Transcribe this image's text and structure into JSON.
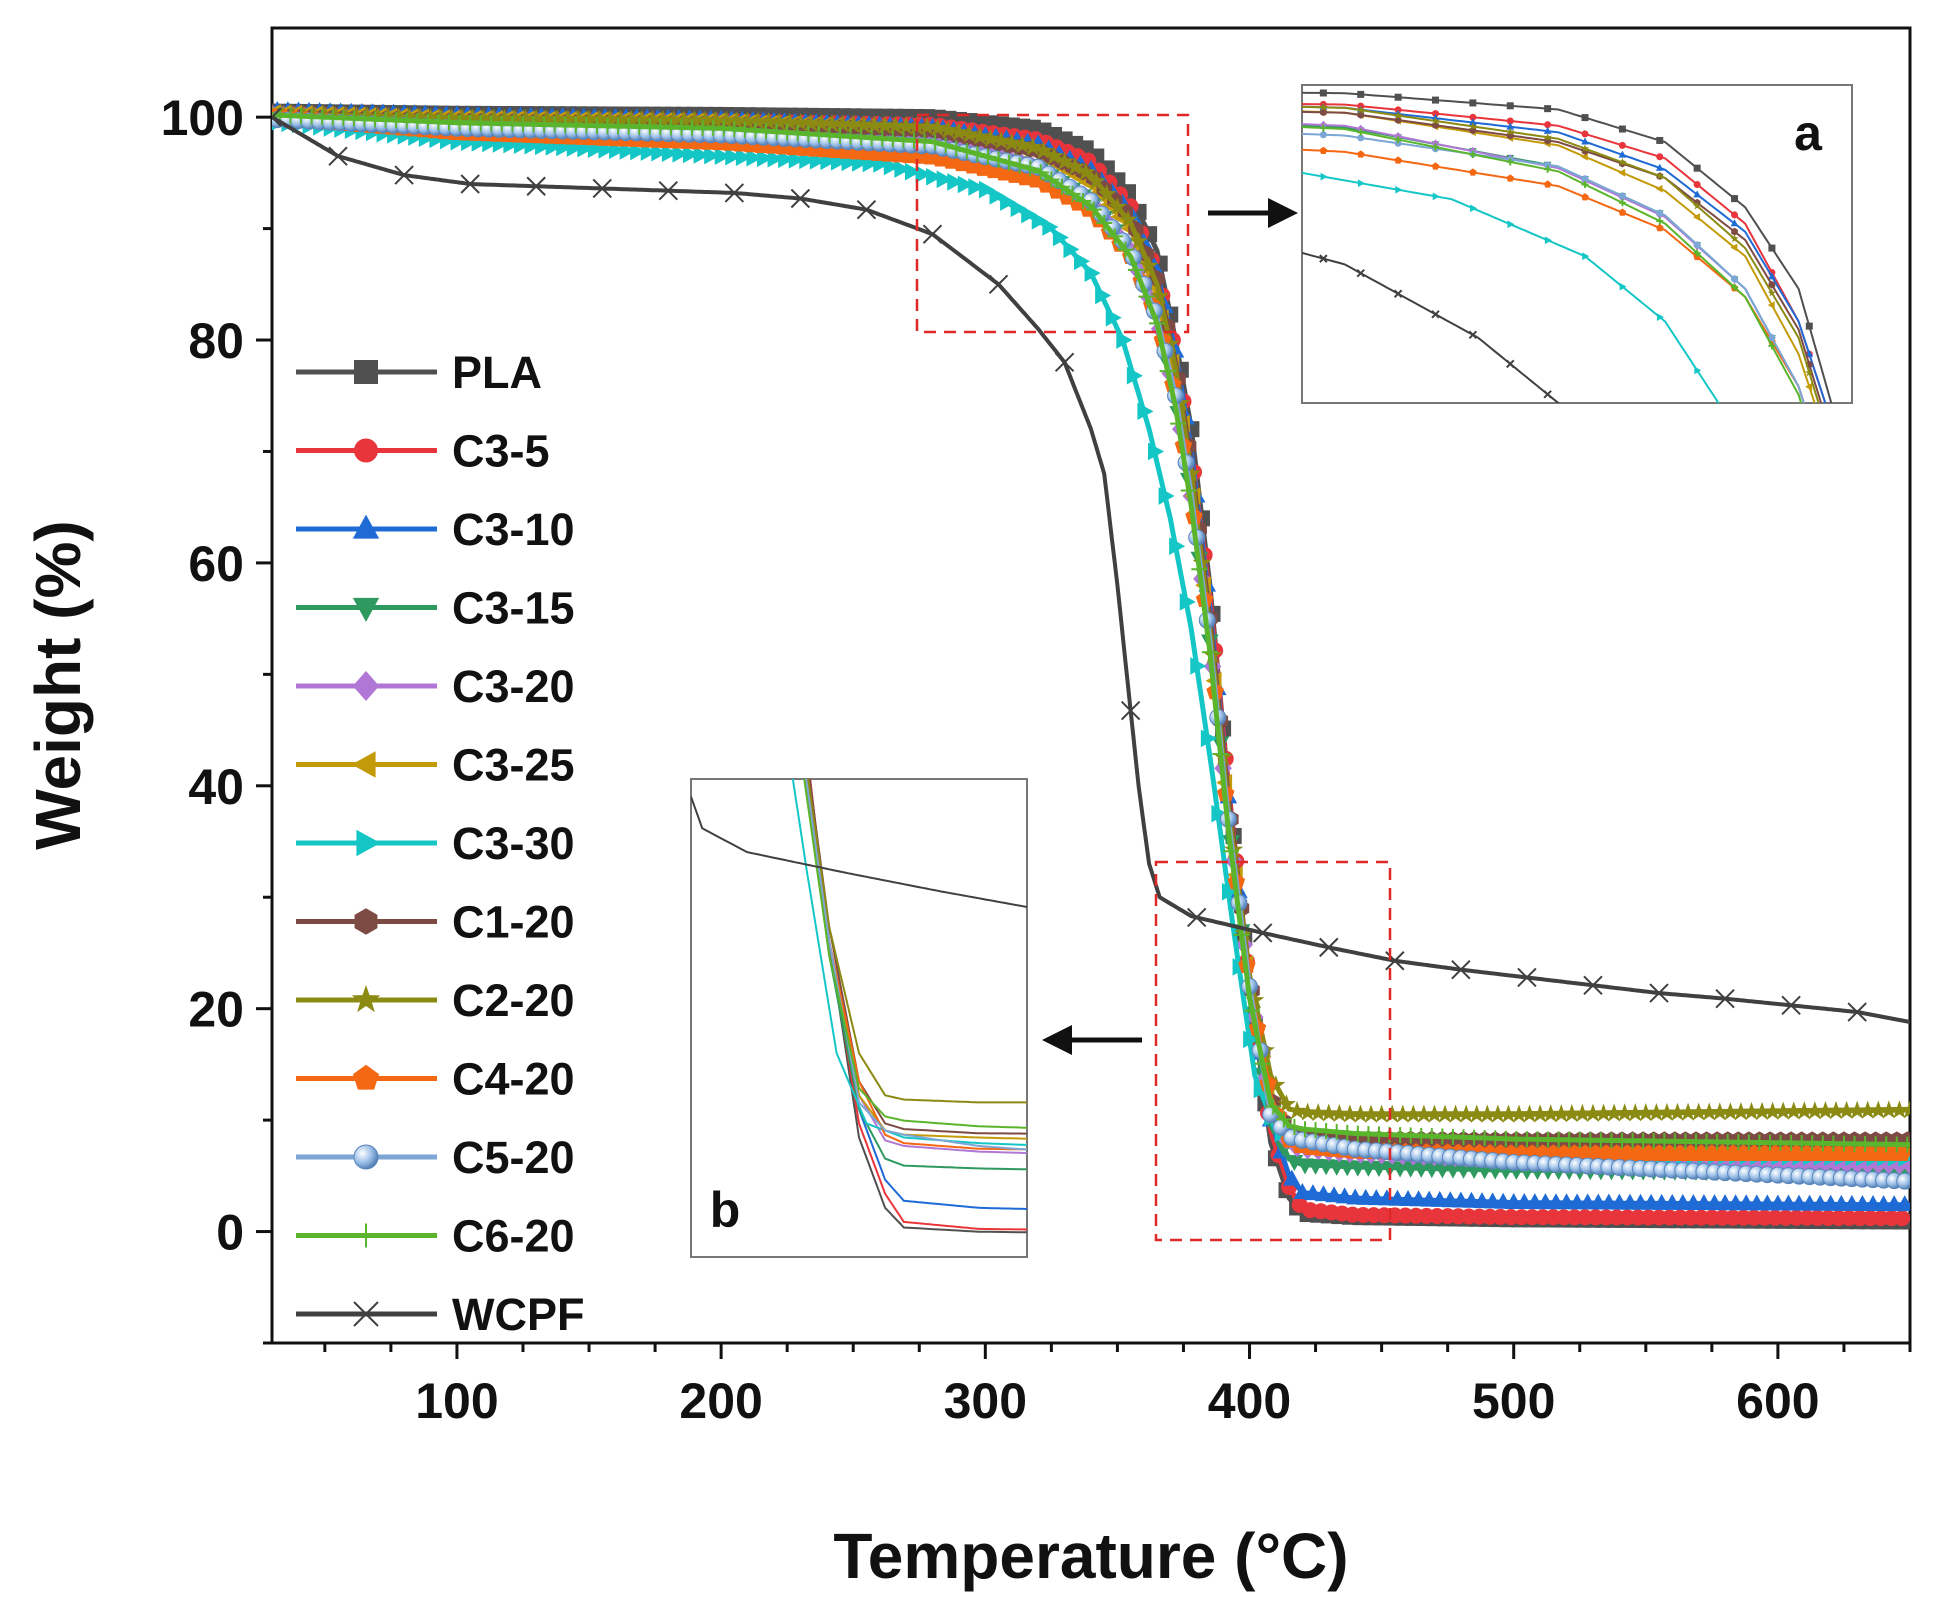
{
  "chart_data": {
    "type": "line",
    "title": "",
    "xlabel": "Temperature (°C)",
    "ylabel": "Weight (%)",
    "xlim": [
      30,
      650
    ],
    "ylim": [
      -10,
      108
    ],
    "xticks": [
      100,
      200,
      300,
      400,
      500,
      600
    ],
    "yticks": [
      0,
      20,
      40,
      60,
      80,
      100
    ],
    "xtick_labels": [
      "100",
      "200",
      "300",
      "400",
      "500",
      "600"
    ],
    "ytick_labels": [
      "0",
      "20",
      "40",
      "60",
      "80",
      "100"
    ],
    "legend_position": "left",
    "grid": false,
    "series": [
      {
        "name": "PLA",
        "color": "#505050",
        "marker": "square",
        "points": [
          [
            30,
            100.5
          ],
          [
            100,
            100.3
          ],
          [
            200,
            100.2
          ],
          [
            280,
            100
          ],
          [
            320,
            99
          ],
          [
            340,
            97
          ],
          [
            355,
            93
          ],
          [
            365,
            88
          ],
          [
            372,
            80
          ],
          [
            378,
            72
          ],
          [
            385,
            58
          ],
          [
            392,
            40
          ],
          [
            400,
            22
          ],
          [
            408,
            8
          ],
          [
            415,
            3
          ],
          [
            420,
            1.6
          ],
          [
            440,
            1.3
          ],
          [
            500,
            1.1
          ],
          [
            650,
            0.9
          ]
        ]
      },
      {
        "name": "C3-5",
        "color": "#e8353b",
        "marker": "circle",
        "points": [
          [
            30,
            100.3
          ],
          [
            100,
            99.8
          ],
          [
            200,
            99.6
          ],
          [
            280,
            99.3
          ],
          [
            320,
            98
          ],
          [
            340,
            96
          ],
          [
            355,
            92
          ],
          [
            365,
            86
          ],
          [
            372,
            79
          ],
          [
            378,
            70
          ],
          [
            385,
            57
          ],
          [
            392,
            40
          ],
          [
            400,
            22
          ],
          [
            408,
            9
          ],
          [
            415,
            4
          ],
          [
            420,
            2
          ],
          [
            440,
            1.5
          ],
          [
            500,
            1.3
          ],
          [
            650,
            1.2
          ]
        ]
      },
      {
        "name": "C3-10",
        "color": "#1f6bd6",
        "marker": "triangle-up",
        "points": [
          [
            30,
            100.6
          ],
          [
            100,
            100.2
          ],
          [
            200,
            99.8
          ],
          [
            280,
            99.1
          ],
          [
            320,
            97.6
          ],
          [
            340,
            95.3
          ],
          [
            355,
            91.5
          ],
          [
            365,
            86
          ],
          [
            372,
            79
          ],
          [
            378,
            70
          ],
          [
            385,
            56
          ],
          [
            392,
            39
          ],
          [
            400,
            22
          ],
          [
            408,
            10
          ],
          [
            415,
            5
          ],
          [
            420,
            3.5
          ],
          [
            440,
            3
          ],
          [
            500,
            2.6
          ],
          [
            650,
            2.4
          ]
        ]
      },
      {
        "name": "C3-15",
        "color": "#2e9a60",
        "marker": "triangle-down",
        "points": [
          [
            30,
            100
          ],
          [
            100,
            99.2
          ],
          [
            200,
            98.9
          ],
          [
            280,
            97.9
          ],
          [
            320,
            95.5
          ],
          [
            340,
            92.5
          ],
          [
            355,
            88
          ],
          [
            365,
            82
          ],
          [
            372,
            75
          ],
          [
            378,
            66
          ],
          [
            385,
            53
          ],
          [
            392,
            37
          ],
          [
            400,
            21
          ],
          [
            408,
            10
          ],
          [
            415,
            6.5
          ],
          [
            420,
            6
          ],
          [
            440,
            5.8
          ],
          [
            500,
            5.5
          ],
          [
            650,
            5.3
          ]
        ]
      },
      {
        "name": "C3-20",
        "color": "#b177d6",
        "marker": "diamond",
        "points": [
          [
            30,
            100.2
          ],
          [
            100,
            99.4
          ],
          [
            200,
            99
          ],
          [
            280,
            98
          ],
          [
            320,
            95.4
          ],
          [
            340,
            92.4
          ],
          [
            355,
            88
          ],
          [
            365,
            82
          ],
          [
            372,
            75
          ],
          [
            378,
            66
          ],
          [
            385,
            53
          ],
          [
            392,
            37
          ],
          [
            400,
            22
          ],
          [
            408,
            11
          ],
          [
            415,
            7.8
          ],
          [
            420,
            7.4
          ],
          [
            440,
            7
          ],
          [
            500,
            6.5
          ],
          [
            650,
            6
          ]
        ]
      },
      {
        "name": "C3-25",
        "color": "#c39a08",
        "marker": "triangle-left",
        "points": [
          [
            30,
            100.4
          ],
          [
            100,
            99.9
          ],
          [
            200,
            99.6
          ],
          [
            280,
            98.8
          ],
          [
            320,
            96.8
          ],
          [
            340,
            94
          ],
          [
            355,
            90
          ],
          [
            365,
            84
          ],
          [
            372,
            77
          ],
          [
            378,
            68
          ],
          [
            385,
            54
          ],
          [
            392,
            38
          ],
          [
            400,
            22
          ],
          [
            408,
            11
          ],
          [
            415,
            8.5
          ],
          [
            420,
            8.2
          ],
          [
            440,
            8
          ],
          [
            500,
            7.6
          ],
          [
            650,
            7.4
          ]
        ]
      },
      {
        "name": "C3-30",
        "color": "#14c6c6",
        "marker": "triangle-right",
        "points": [
          [
            30,
            99.6
          ],
          [
            100,
            97.8
          ],
          [
            200,
            96.5
          ],
          [
            260,
            95.8
          ],
          [
            300,
            93.5
          ],
          [
            325,
            90
          ],
          [
            340,
            86
          ],
          [
            352,
            80
          ],
          [
            362,
            72
          ],
          [
            370,
            64
          ],
          [
            378,
            54
          ],
          [
            386,
            41
          ],
          [
            394,
            27
          ],
          [
            402,
            14
          ],
          [
            410,
            9
          ],
          [
            420,
            8
          ],
          [
            440,
            7.6
          ],
          [
            500,
            7
          ],
          [
            650,
            6.6
          ]
        ]
      },
      {
        "name": "C1-20",
        "color": "#7d4a44",
        "marker": "hexagon",
        "points": [
          [
            30,
            100.1
          ],
          [
            100,
            99.6
          ],
          [
            200,
            99.3
          ],
          [
            280,
            98.8
          ],
          [
            320,
            97
          ],
          [
            340,
            94.8
          ],
          [
            355,
            91
          ],
          [
            365,
            85.5
          ],
          [
            372,
            78
          ],
          [
            378,
            69
          ],
          [
            385,
            55
          ],
          [
            392,
            39
          ],
          [
            400,
            23
          ],
          [
            408,
            12
          ],
          [
            415,
            9
          ],
          [
            420,
            8.6
          ],
          [
            440,
            8.3
          ],
          [
            500,
            8.2
          ],
          [
            650,
            8.2
          ]
        ]
      },
      {
        "name": "C2-20",
        "color": "#8b8a13",
        "marker": "star",
        "points": [
          [
            30,
            100.2
          ],
          [
            100,
            99.9
          ],
          [
            200,
            99.7
          ],
          [
            280,
            99.1
          ],
          [
            320,
            97.2
          ],
          [
            340,
            94.8
          ],
          [
            355,
            90.5
          ],
          [
            365,
            85
          ],
          [
            372,
            77.5
          ],
          [
            378,
            68
          ],
          [
            385,
            54
          ],
          [
            392,
            38
          ],
          [
            400,
            23
          ],
          [
            408,
            14
          ],
          [
            415,
            11
          ],
          [
            420,
            10.7
          ],
          [
            440,
            10.5
          ],
          [
            500,
            10.5
          ],
          [
            650,
            10.9
          ]
        ]
      },
      {
        "name": "C4-20",
        "color": "#f46713",
        "marker": "pentagon",
        "points": [
          [
            30,
            100
          ],
          [
            100,
            98.6
          ],
          [
            200,
            97.7
          ],
          [
            280,
            96.4
          ],
          [
            320,
            94.3
          ],
          [
            340,
            91.6
          ],
          [
            355,
            87.5
          ],
          [
            365,
            82
          ],
          [
            372,
            75
          ],
          [
            378,
            66
          ],
          [
            385,
            53
          ],
          [
            392,
            37
          ],
          [
            400,
            22
          ],
          [
            408,
            12
          ],
          [
            415,
            8.2
          ],
          [
            420,
            7.6
          ],
          [
            440,
            7.2
          ],
          [
            500,
            7
          ],
          [
            650,
            7
          ]
        ]
      },
      {
        "name": "C5-20",
        "color": "#7ba6d6",
        "marker": "sphere",
        "points": [
          [
            30,
            99.8
          ],
          [
            100,
            99
          ],
          [
            200,
            98.4
          ],
          [
            280,
            97.4
          ],
          [
            320,
            95.5
          ],
          [
            340,
            92.5
          ],
          [
            355,
            88
          ],
          [
            365,
            82
          ],
          [
            372,
            75
          ],
          [
            378,
            66
          ],
          [
            385,
            53
          ],
          [
            392,
            37
          ],
          [
            400,
            22
          ],
          [
            408,
            10.5
          ],
          [
            415,
            8.5
          ],
          [
            420,
            8.2
          ],
          [
            440,
            7.4
          ],
          [
            500,
            6.2
          ],
          [
            650,
            4.5
          ]
        ]
      },
      {
        "name": "C6-20",
        "color": "#5ab52c",
        "marker": "plus",
        "points": [
          [
            30,
            100.2
          ],
          [
            100,
            99.5
          ],
          [
            200,
            99
          ],
          [
            280,
            97.8
          ],
          [
            320,
            95.2
          ],
          [
            340,
            92
          ],
          [
            355,
            87.5
          ],
          [
            365,
            81.5
          ],
          [
            372,
            74
          ],
          [
            378,
            65
          ],
          [
            385,
            52
          ],
          [
            392,
            36
          ],
          [
            400,
            21
          ],
          [
            408,
            11.5
          ],
          [
            415,
            9.5
          ],
          [
            420,
            9.2
          ],
          [
            440,
            8.8
          ],
          [
            500,
            8.3
          ],
          [
            650,
            7.8
          ]
        ]
      },
      {
        "name": "WCPF",
        "color": "#404040",
        "marker": "x",
        "points": [
          [
            30,
            100
          ],
          [
            55,
            96.5
          ],
          [
            80,
            94.8
          ],
          [
            105,
            94
          ],
          [
            130,
            93.8
          ],
          [
            155,
            93.6
          ],
          [
            180,
            93.4
          ],
          [
            205,
            93.2
          ],
          [
            230,
            92.7
          ],
          [
            255,
            91.7
          ],
          [
            280,
            89.5
          ],
          [
            305,
            85
          ],
          [
            320,
            81
          ],
          [
            330,
            78
          ],
          [
            340,
            72
          ],
          [
            345,
            68
          ],
          [
            350,
            58
          ],
          [
            354,
            49
          ],
          [
            358,
            40
          ],
          [
            362,
            33
          ],
          [
            366,
            30
          ],
          [
            378,
            28.3
          ],
          [
            405,
            26.8
          ],
          [
            430,
            25.5
          ],
          [
            455,
            24.3
          ],
          [
            480,
            23.5
          ],
          [
            505,
            22.8
          ],
          [
            530,
            22.1
          ],
          [
            555,
            21.4
          ],
          [
            580,
            20.9
          ],
          [
            605,
            20.3
          ],
          [
            630,
            19.7
          ],
          [
            650,
            18.8
          ]
        ]
      }
    ],
    "insets": [
      {
        "label": "a",
        "xrange": [
          272,
          375
        ],
        "yrange": [
          81,
          100.5
        ]
      },
      {
        "label": "b",
        "xrange": [
          363,
          453
        ],
        "yrange": [
          -0.5,
          33.5
        ]
      }
    ]
  }
}
